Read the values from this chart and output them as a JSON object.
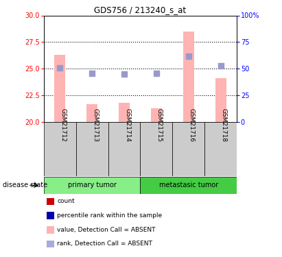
{
  "title": "GDS756 / 213240_s_at",
  "samples": [
    "GSM21712",
    "GSM21713",
    "GSM21714",
    "GSM21715",
    "GSM21716",
    "GSM21718"
  ],
  "bar_values": [
    26.3,
    21.7,
    21.8,
    21.3,
    28.5,
    24.1
  ],
  "rank_dots": [
    25.1,
    24.6,
    24.5,
    24.6,
    26.2,
    25.3
  ],
  "bar_color": "#FFB3B3",
  "rank_dot_color": "#9999CC",
  "bar_bottom": 20.0,
  "ylim_left": [
    20,
    30
  ],
  "yticks_left": [
    20,
    22.5,
    25,
    27.5,
    30
  ],
  "ylim_right": [
    0,
    100
  ],
  "yticks_right": [
    0,
    25,
    50,
    75,
    100
  ],
  "dotted_lines": [
    22.5,
    25.0,
    27.5
  ],
  "group_primary_color": "#88EE88",
  "group_meta_color": "#44CC44",
  "group_labels": [
    "primary tumor",
    "metastasic tumor"
  ],
  "sample_box_color": "#CCCCCC",
  "disease_state_label": "disease state",
  "legend_colors": [
    "#CC0000",
    "#0000AA",
    "#FFB3B3",
    "#AAAADD"
  ],
  "legend_labels": [
    "count",
    "percentile rank within the sample",
    "value, Detection Call = ABSENT",
    "rank, Detection Call = ABSENT"
  ],
  "bar_width": 0.35,
  "rank_dot_size": 28
}
